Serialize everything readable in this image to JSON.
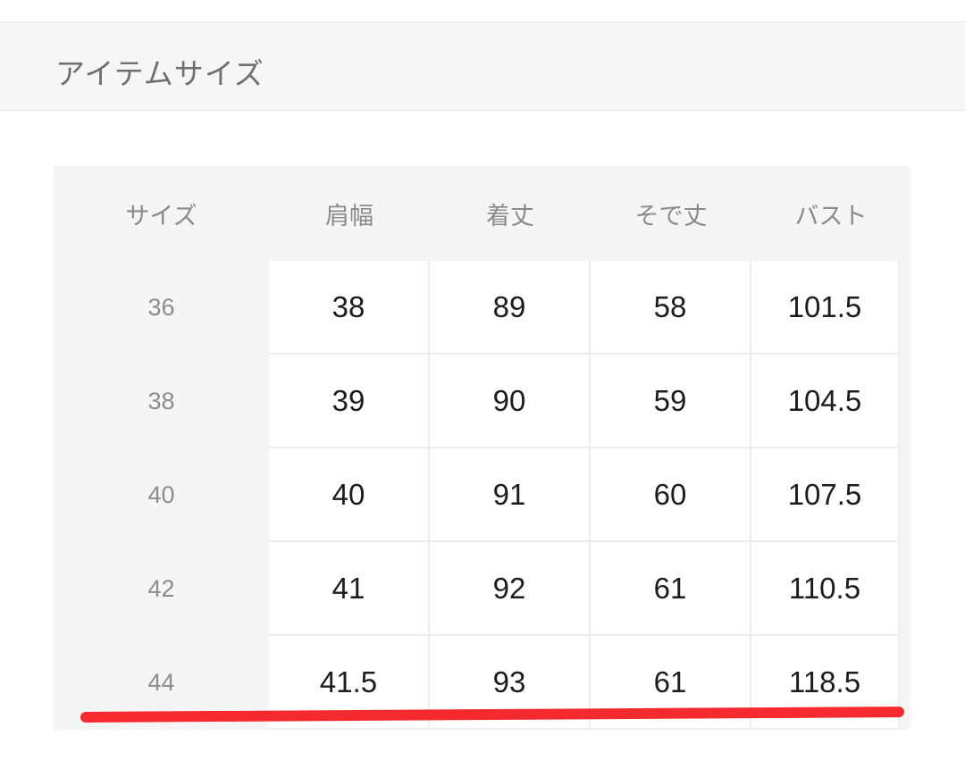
{
  "section": {
    "title": "アイテムサイズ"
  },
  "table": {
    "headers": [
      "サイズ",
      "肩幅",
      "着丈",
      "そで丈",
      "バスト"
    ],
    "rows": [
      [
        "36",
        "38",
        "89",
        "58",
        "101.5"
      ],
      [
        "38",
        "39",
        "90",
        "59",
        "104.5"
      ],
      [
        "40",
        "40",
        "91",
        "60",
        "107.5"
      ],
      [
        "42",
        "41",
        "92",
        "61",
        "110.5"
      ],
      [
        "44",
        "41.5",
        "93",
        "61",
        "118.5"
      ]
    ]
  },
  "annotation": {
    "underline_color": "#f52a2e"
  }
}
